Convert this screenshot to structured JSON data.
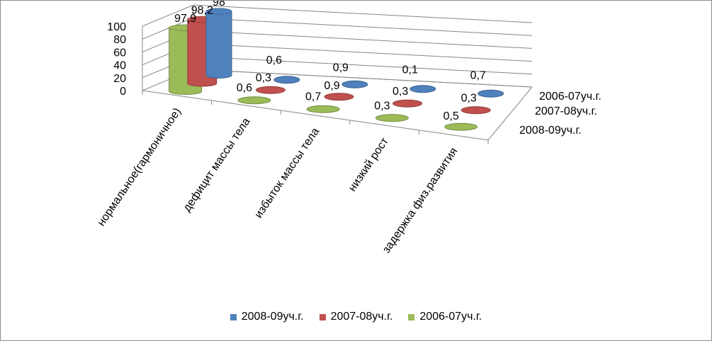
{
  "chart_data": {
    "type": "bar",
    "style": "3d-cylinder",
    "categories": [
      "нормальное(гармоничное)",
      "дефицит массы тела",
      "избыток массы тела",
      "низкий рост",
      "задержка физ.развития"
    ],
    "series": [
      {
        "name": "2008-09уч.г.",
        "values": [
          98,
          0.6,
          0.9,
          0.1,
          0.7
        ],
        "labels": [
          "98",
          "0,6",
          "0,9",
          "0,1",
          "0,7"
        ],
        "color": "#4f81bd"
      },
      {
        "name": "2007-08уч.г.",
        "values": [
          98.2,
          0.3,
          0.9,
          0.3,
          0.3
        ],
        "labels": [
          "98,2",
          "0,3",
          "0,9",
          "0,3",
          "0,3"
        ],
        "color": "#c0504d"
      },
      {
        "name": "2006-07уч.г.",
        "values": [
          97.9,
          0.6,
          0.7,
          0.3,
          0.5
        ],
        "labels": [
          "97,9",
          "0,6",
          "0,7",
          "0,3",
          "0,5"
        ],
        "color": "#9bbb59"
      }
    ],
    "depth_labels": [
      "2006-07уч.г.",
      "2007-08уч.г.",
      "2008-09уч.г."
    ],
    "y_ticks": [
      "0",
      "20",
      "40",
      "60",
      "80",
      "100"
    ],
    "ylim": [
      0,
      100
    ],
    "grid": true,
    "legend_position": "bottom"
  }
}
